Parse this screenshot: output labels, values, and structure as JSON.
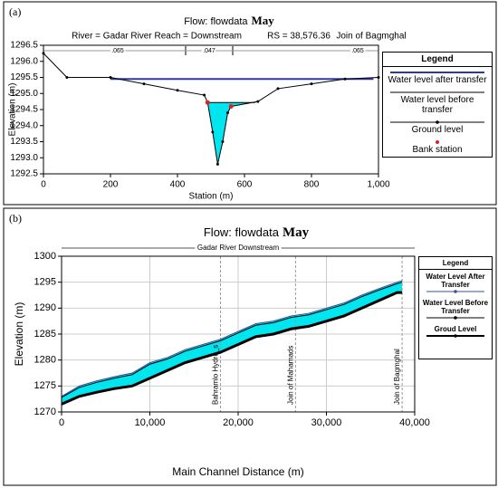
{
  "chart_data": [
    {
      "panel_label": "(a)",
      "type": "line",
      "title": "Flow: flowdata",
      "title_emphasis": "May",
      "subtitle_parts": [
        "River = Gadar River   Reach = Downstream",
        "RS = 38,576.36",
        "Join of Bagmghal"
      ],
      "mannings": [
        ".065",
        ".047",
        ".065"
      ],
      "xlabel": "Station (m)",
      "ylabel": "Elevation (m)",
      "xlim": [
        0,
        1000
      ],
      "ylim": [
        1292.5,
        1296.5
      ],
      "xticks": [
        0,
        200,
        400,
        600,
        800,
        {
          "value": 1000,
          "label": "1,000"
        }
      ],
      "yticks": [
        1292.5,
        {
          "value": 1293,
          "label": "1293.0"
        },
        1293.5,
        {
          "value": 1294,
          "label": "1294.0"
        },
        1294.5,
        {
          "value": 1295,
          "label": "1295.0"
        },
        1295.5,
        {
          "value": 1296,
          "label": "1296.0"
        },
        1296.5
      ],
      "grid": false,
      "legend": "right",
      "legend_title": "Legend",
      "series": [
        {
          "name": "Water level after transfer",
          "color": "#2b3a9e",
          "width": 2,
          "x": [
            200,
            985
          ],
          "values": [
            1295.45,
            1295.45
          ]
        },
        {
          "name": "Water level before transfer",
          "color": "#000000",
          "width": 1,
          "fill": "#00e5ee",
          "x": [
            490,
            632
          ],
          "values": [
            1294.72,
            1294.72
          ]
        },
        {
          "name": "Ground level",
          "color": "#000000",
          "width": 1,
          "marker": true,
          "x": [
            0,
            70,
            200,
            300,
            400,
            480,
            490,
            505,
            520,
            535,
            550,
            560,
            640,
            700,
            800,
            900,
            1000
          ],
          "values": [
            1296.25,
            1295.5,
            1295.5,
            1295.3,
            1295.1,
            1294.95,
            1294.72,
            1293.8,
            1292.8,
            1293.5,
            1294.4,
            1294.6,
            1294.75,
            1295.15,
            1295.3,
            1295.45,
            1295.5
          ]
        },
        {
          "name": "Bank station",
          "color": "#e02020",
          "mode": "markers",
          "x": [
            490,
            560
          ],
          "values": [
            1294.72,
            1294.6
          ]
        }
      ]
    },
    {
      "panel_label": "(b)",
      "type": "line",
      "title": "Flow: flowdata",
      "title_emphasis": "May",
      "reach_label": "Gadar River Downstream",
      "xlabel": "Main Channel Distance (m)",
      "ylabel": "Elevation (m)",
      "xlim": [
        0,
        40000
      ],
      "ylim": [
        1270,
        1300
      ],
      "xticks": [
        0,
        {
          "value": 10000,
          "label": "10,000"
        },
        {
          "value": 20000,
          "label": "20,000"
        },
        {
          "value": 30000,
          "label": "30,000"
        },
        {
          "value": 40000,
          "label": "40,000"
        }
      ],
      "yticks": [
        1270,
        1275,
        1280,
        1285,
        1290,
        1295,
        1300
      ],
      "grid": true,
      "legend": "right",
      "legend_title": "Legend",
      "annotations": [
        {
          "x": 18000,
          "text": "Bahramlo Hydro_s"
        },
        {
          "x": 26500,
          "text": "Join of Mahamads"
        },
        {
          "x": 38576,
          "text": "Join of Bagmghal"
        }
      ],
      "series": [
        {
          "name": "Water Level After Transfer",
          "color": "#3a4fa0",
          "width": 1,
          "fill": "#00e5ee",
          "x": [
            0,
            2000,
            4000,
            6000,
            8000,
            10000,
            12000,
            14000,
            16000,
            18000,
            20000,
            22000,
            24000,
            26000,
            28000,
            30000,
            32000,
            34000,
            36000,
            38000,
            38576
          ],
          "values": [
            1273,
            1275,
            1276,
            1276.8,
            1277.5,
            1279.5,
            1280.5,
            1282,
            1283,
            1284,
            1285.5,
            1287,
            1287.5,
            1288.5,
            1289,
            1290,
            1291,
            1292.5,
            1293.8,
            1295,
            1295.3
          ]
        },
        {
          "name": "Water Level Before Transfer",
          "color": "#000000",
          "width": 1,
          "x": [
            0,
            2000,
            4000,
            6000,
            8000,
            10000,
            12000,
            14000,
            16000,
            18000,
            20000,
            22000,
            24000,
            26000,
            28000,
            30000,
            32000,
            34000,
            36000,
            38000,
            38576
          ],
          "values": [
            1272.8,
            1274.7,
            1275.7,
            1276.5,
            1277.2,
            1279.2,
            1280.2,
            1281.7,
            1282.7,
            1283.7,
            1285.2,
            1286.7,
            1287.2,
            1288.2,
            1288.7,
            1289.7,
            1290.7,
            1292.2,
            1293.5,
            1294.7,
            1295
          ]
        },
        {
          "name": "Groud Level",
          "color": "#000000",
          "width": 3,
          "x": [
            0,
            2000,
            4000,
            6000,
            8000,
            10000,
            12000,
            14000,
            16000,
            18000,
            20000,
            22000,
            24000,
            26000,
            28000,
            30000,
            32000,
            34000,
            36000,
            38000,
            38576
          ],
          "values": [
            1271.5,
            1273,
            1273.8,
            1274.5,
            1275,
            1276.5,
            1278,
            1279.5,
            1280.5,
            1281.5,
            1283,
            1284.5,
            1285,
            1286,
            1286.5,
            1287.5,
            1288.5,
            1290,
            1291.5,
            1293,
            1293
          ]
        }
      ]
    }
  ]
}
